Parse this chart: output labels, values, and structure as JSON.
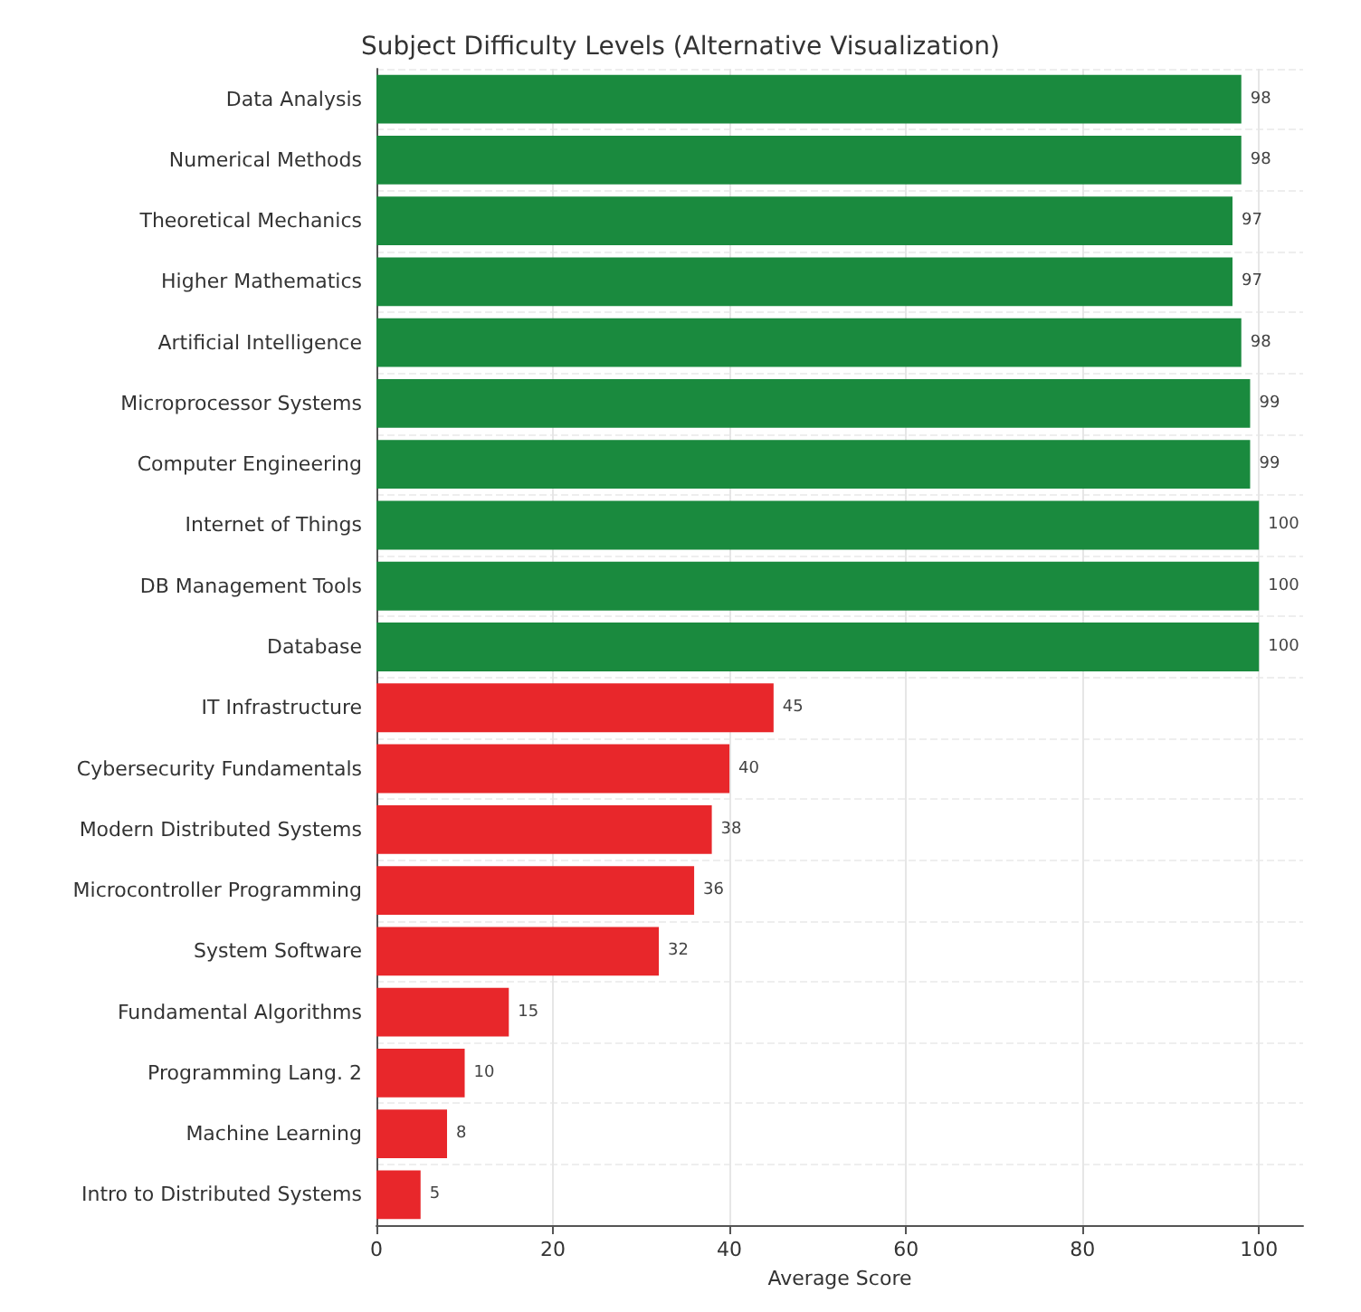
{
  "chart_data": {
    "type": "bar",
    "orientation": "horizontal",
    "title": "Subject Difficulty Levels (Alternative Visualization)",
    "xlabel": "Average Score",
    "categories": [
      "Data Analysis",
      "Numerical Methods",
      "Theoretical Mechanics",
      "Higher Mathematics",
      "Artificial Intelligence",
      "Microprocessor Systems",
      "Computer Engineering",
      "Internet of Things",
      "DB Management Tools",
      "Database",
      "IT Infrastructure",
      "Cybersecurity Fundamentals",
      "Modern Distributed Systems",
      "Microcontroller Programming",
      "System Software",
      "Fundamental Algorithms",
      "Programming Lang. 2",
      "Machine Learning",
      "Intro to Distributed Systems"
    ],
    "values": [
      98,
      98,
      97,
      97,
      98,
      99,
      99,
      100,
      100,
      100,
      45,
      40,
      38,
      36,
      32,
      15,
      10,
      8,
      5
    ],
    "colors": [
      "#1a8a3e",
      "#1a8a3e",
      "#1a8a3e",
      "#1a8a3e",
      "#1a8a3e",
      "#1a8a3e",
      "#1a8a3e",
      "#1a8a3e",
      "#1a8a3e",
      "#1a8a3e",
      "#e8272b",
      "#e8272b",
      "#e8272b",
      "#e8272b",
      "#e8272b",
      "#e8272b",
      "#e8272b",
      "#e8272b",
      "#e8272b"
    ],
    "xlim": [
      0,
      105
    ],
    "xticks": [
      0,
      20,
      40,
      60,
      80,
      100
    ],
    "grid": true,
    "data_labels": true
  }
}
